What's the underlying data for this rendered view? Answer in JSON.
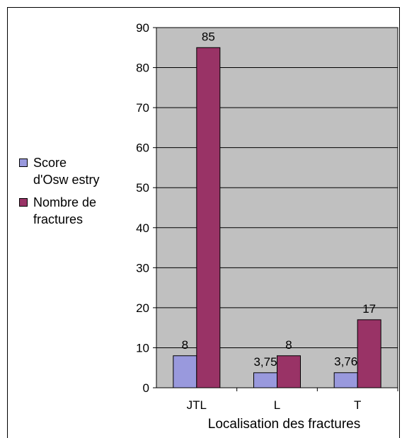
{
  "chart_data": {
    "type": "bar",
    "categories": [
      "JTL",
      "L",
      "T"
    ],
    "series": [
      {
        "name": "Score d'Osw estry",
        "values": [
          8,
          3.75,
          3.76
        ],
        "labels": [
          "8",
          "3,75",
          "3,76"
        ],
        "color": "#9999dd"
      },
      {
        "name": "Nombre de fractures",
        "values": [
          85,
          8,
          17
        ],
        "labels": [
          "85",
          "8",
          "17"
        ],
        "color": "#993366"
      }
    ],
    "xlabel": "Localisation des fractures",
    "ylabel": "",
    "ylim": [
      0,
      90
    ],
    "yticks": [
      0,
      10,
      20,
      30,
      40,
      50,
      60,
      70,
      80,
      90
    ],
    "grid": true,
    "plot_background": "#c0c0c0",
    "legend_position": "left"
  },
  "legend": {
    "series_0_lines": [
      "Score",
      "d'Osw estry"
    ],
    "series_1_lines": [
      "Nombre de",
      "fractures"
    ]
  }
}
